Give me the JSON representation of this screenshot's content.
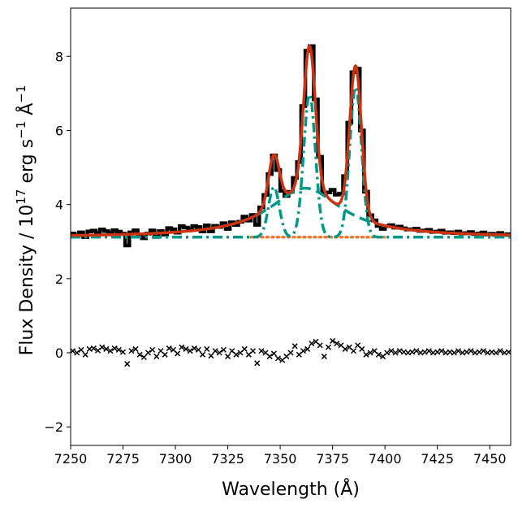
{
  "chart_data": {
    "type": "line",
    "title": "",
    "xlabel": "Wavelength (Å)",
    "ylabel_parts": [
      "Flux Density / 10",
      "17",
      " erg s",
      "−1",
      " Å",
      "−1"
    ],
    "xlim": [
      7250,
      7460
    ],
    "ylim": [
      -2.5,
      9.3
    ],
    "xticks": [
      7250,
      7275,
      7300,
      7325,
      7350,
      7375,
      7400,
      7425,
      7450
    ],
    "xtick_labels": [
      "7250",
      "7275",
      "7300",
      "7325",
      "7350",
      "7375",
      "7400",
      "7425",
      "7450"
    ],
    "yticks": [
      -2,
      0,
      2,
      4,
      6,
      8
    ],
    "ytick_labels": [
      "−2",
      "0",
      "2",
      "4",
      "6",
      "8"
    ],
    "grid": false,
    "legend": "none",
    "continuum": 3.12,
    "broad_component": {
      "center": 7362,
      "amplitude": 1.32,
      "sigma": 21,
      "shape": "lorentzian"
    },
    "narrow_lines": [
      {
        "center": 7347,
        "amplitude": 1.35,
        "sigma": 2.6
      },
      {
        "center": 7364,
        "amplitude": 3.85,
        "sigma": 2.8
      },
      {
        "center": 7386,
        "amplitude": 4.05,
        "sigma": 2.8
      }
    ],
    "residual_x": [
      7251,
      7253,
      7255,
      7257,
      7259,
      7261,
      7263,
      7265,
      7267,
      7269,
      7271,
      7273,
      7275,
      7277,
      7279,
      7281,
      7283,
      7285,
      7287,
      7289,
      7291,
      7293,
      7295,
      7297,
      7299,
      7301,
      7303,
      7305,
      7307,
      7309,
      7311,
      7313,
      7315,
      7317,
      7319,
      7321,
      7323,
      7325,
      7327,
      7329,
      7331,
      7333,
      7335,
      7337,
      7339,
      7341,
      7343,
      7345,
      7347,
      7349,
      7351,
      7353,
      7355,
      7357,
      7359,
      7361,
      7363,
      7365,
      7367,
      7369,
      7371,
      7373,
      7375,
      7377,
      7379,
      7381,
      7383,
      7385,
      7387,
      7389,
      7391,
      7393,
      7395,
      7397,
      7399,
      7401,
      7403,
      7405,
      7407,
      7409,
      7411,
      7413,
      7415,
      7417,
      7419,
      7421,
      7423,
      7425,
      7427,
      7429,
      7431,
      7433,
      7435,
      7437,
      7439,
      7441,
      7443,
      7445,
      7447,
      7449,
      7451,
      7453,
      7455,
      7457,
      7459
    ],
    "residual_y": [
      0.05,
      0.0,
      0.08,
      -0.05,
      0.1,
      0.12,
      0.06,
      0.15,
      0.1,
      0.05,
      0.12,
      0.08,
      0.02,
      -0.3,
      0.05,
      0.1,
      -0.05,
      -0.12,
      0.0,
      0.08,
      -0.1,
      0.05,
      -0.05,
      0.12,
      0.08,
      -0.02,
      0.15,
      0.1,
      0.05,
      0.12,
      0.08,
      -0.05,
      0.1,
      -0.08,
      0.05,
      0.0,
      0.08,
      -0.1,
      0.05,
      -0.05,
      0.0,
      0.1,
      -0.05,
      0.05,
      -0.28,
      0.05,
      0.0,
      -0.1,
      -0.02,
      -0.15,
      -0.2,
      -0.1,
      0.0,
      0.18,
      -0.05,
      0.05,
      0.1,
      0.25,
      0.3,
      0.2,
      -0.1,
      0.15,
      0.32,
      0.25,
      0.2,
      0.1,
      0.15,
      0.05,
      0.2,
      0.1,
      -0.05,
      0.0,
      0.05,
      -0.05,
      -0.1,
      0.0,
      0.05,
      0.0,
      0.05,
      0.02,
      0.0,
      0.02,
      0.05,
      0.0,
      0.02,
      0.05,
      0.0,
      0.02,
      0.05,
      0.0,
      0.02,
      0.0,
      0.05,
      0.0,
      0.02,
      0.05,
      0.0,
      0.02,
      0.05,
      0.0,
      0.02,
      0.0,
      0.05,
      0.0,
      0.02
    ],
    "colors": {
      "data": "#000000",
      "total_fit": "#cc3311",
      "components": "#009988",
      "continuum": "#ee7733",
      "residuals": "#000000"
    }
  }
}
